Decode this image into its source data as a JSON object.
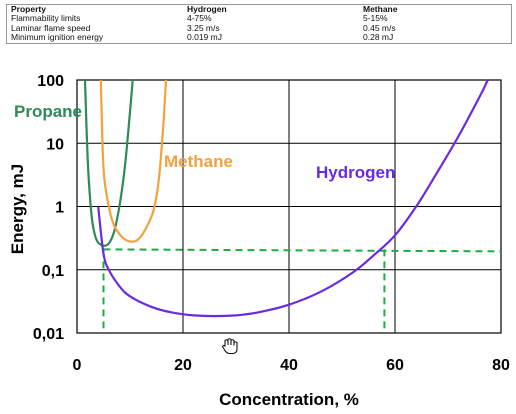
{
  "table": {
    "headers": [
      "Property",
      "Hydrogen",
      "Methane"
    ],
    "rows": [
      [
        "Flammability limits",
        "4-75%",
        "5-15%"
      ],
      [
        "Laminar flame speed",
        "3.25 m/s",
        "0.45 m/s"
      ],
      [
        "Minimum ignition energy",
        "0.019 mJ",
        "0.28 mJ"
      ]
    ]
  },
  "chart_data": {
    "type": "line",
    "title": "",
    "xlabel": "Concentration, %",
    "ylabel": "Energy, mJ",
    "xlim": [
      0,
      80
    ],
    "ylim": [
      0.01,
      100
    ],
    "yscale": "log",
    "x_ticks": [
      "0",
      "20",
      "40",
      "60",
      "80"
    ],
    "y_ticks": [
      "0,01",
      "0,1",
      "1",
      "10",
      "100"
    ],
    "grid": true,
    "series": [
      {
        "name": "Propane",
        "color": "#2e8b57",
        "x": [
          1.5,
          2.0,
          2.5,
          3.0,
          3.5,
          4.0,
          5.0,
          6.0,
          7.0,
          8.0,
          9.0,
          9.8,
          10.5
        ],
        "y": [
          100,
          6,
          1.2,
          0.5,
          0.33,
          0.27,
          0.24,
          0.26,
          0.4,
          1.0,
          4.0,
          20,
          100
        ]
      },
      {
        "name": "Methane",
        "color": "#f2a23c",
        "x": [
          4.5,
          5.0,
          6.0,
          7.0,
          8.5,
          10.0,
          11.5,
          13.0,
          14.5,
          15.5,
          16.3,
          16.8
        ],
        "y": [
          100,
          4,
          1.0,
          0.5,
          0.33,
          0.28,
          0.3,
          0.45,
          0.9,
          3,
          20,
          100
        ]
      },
      {
        "name": "Hydrogen",
        "color": "#6a2be0",
        "x": [
          4.0,
          5.0,
          6.0,
          8.0,
          10.0,
          14.0,
          18.0,
          22.0,
          26.0,
          30.0,
          34.0,
          40.0,
          46.0,
          52.0,
          56.0,
          60.0,
          64.0,
          68.0,
          72.0,
          76.0,
          77.5
        ],
        "y": [
          1.0,
          0.18,
          0.1,
          0.055,
          0.038,
          0.026,
          0.021,
          0.019,
          0.0185,
          0.019,
          0.021,
          0.028,
          0.045,
          0.09,
          0.17,
          0.35,
          1.0,
          3.5,
          13,
          55,
          100
        ]
      }
    ],
    "reference_lines": [
      {
        "color": "#22aa44",
        "dash": true,
        "x": [
          5,
          58
        ],
        "y": [
          0.21,
          0.21
        ]
      }
    ]
  }
}
